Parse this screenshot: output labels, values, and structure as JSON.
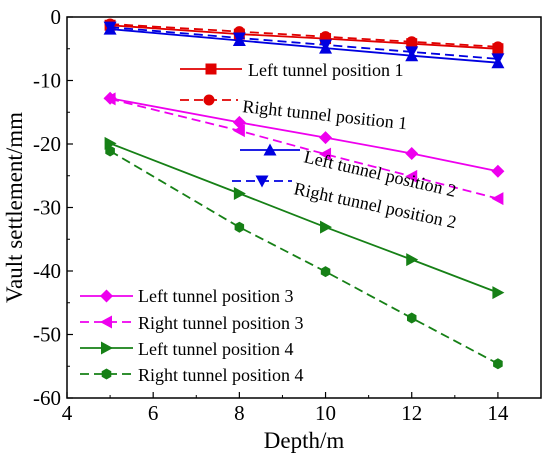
{
  "chart_data": {
    "type": "line",
    "title": "",
    "xlabel": "Depth/m",
    "ylabel": "Vault settlement/mm",
    "xlim": [
      4,
      15
    ],
    "ylim": [
      -60,
      0
    ],
    "xticks": [
      4,
      6,
      8,
      10,
      12,
      14
    ],
    "yticks": [
      0,
      -10,
      -20,
      -30,
      -40,
      -50,
      -60
    ],
    "grid": false,
    "legend_placement": "inside, entries placed next to their lines",
    "series": [
      {
        "name": "Left tunnel position 1",
        "color": "#e00000",
        "dash": "solid",
        "marker": "square",
        "x": [
          5,
          8,
          10,
          12,
          14
        ],
        "y": [
          -1.3,
          -2.7,
          -3.4,
          -4.2,
          -5.0
        ]
      },
      {
        "name": "Right tunnel position 1",
        "color": "#e00000",
        "dash": "dashed",
        "marker": "circle",
        "x": [
          5,
          8,
          10,
          12,
          14
        ],
        "y": [
          -1.1,
          -2.3,
          -3.1,
          -3.9,
          -4.7
        ]
      },
      {
        "name": "Left tunnel position 2",
        "color": "#0000e0",
        "dash": "solid",
        "marker": "triangle-up",
        "x": [
          5,
          8,
          10,
          12,
          14
        ],
        "y": [
          -1.9,
          -3.7,
          -4.9,
          -6.1,
          -7.2
        ]
      },
      {
        "name": "Right tunnel position 2",
        "color": "#0000e0",
        "dash": "dashed",
        "marker": "triangle-down",
        "x": [
          5,
          8,
          10,
          12,
          14
        ],
        "y": [
          -1.6,
          -3.3,
          -4.4,
          -5.5,
          -6.6
        ]
      },
      {
        "name": "Left tunnel position 3",
        "color": "#ee00ee",
        "dash": "solid",
        "marker": "diamond",
        "x": [
          5,
          8,
          10,
          12,
          14
        ],
        "y": [
          -12.8,
          -16.6,
          -19.0,
          -21.5,
          -24.3
        ]
      },
      {
        "name": "Right tunnel position 3",
        "color": "#ee00ee",
        "dash": "dashed",
        "marker": "triangle-left",
        "x": [
          5,
          8,
          10,
          12,
          14
        ],
        "y": [
          -12.9,
          -17.9,
          -21.6,
          -25.1,
          -28.6
        ]
      },
      {
        "name": "Left tunnel position 4",
        "color": "#168016",
        "dash": "solid",
        "marker": "triangle-right",
        "x": [
          5,
          8,
          10,
          12,
          14
        ],
        "y": [
          -19.9,
          -27.8,
          -33.1,
          -38.2,
          -43.4
        ]
      },
      {
        "name": "Right tunnel position 4",
        "color": "#168016",
        "dash": "dashed",
        "marker": "hexagon",
        "x": [
          5,
          8,
          10,
          12,
          14
        ],
        "y": [
          -21.1,
          -33.1,
          -40.1,
          -47.4,
          -54.6
        ]
      }
    ]
  }
}
